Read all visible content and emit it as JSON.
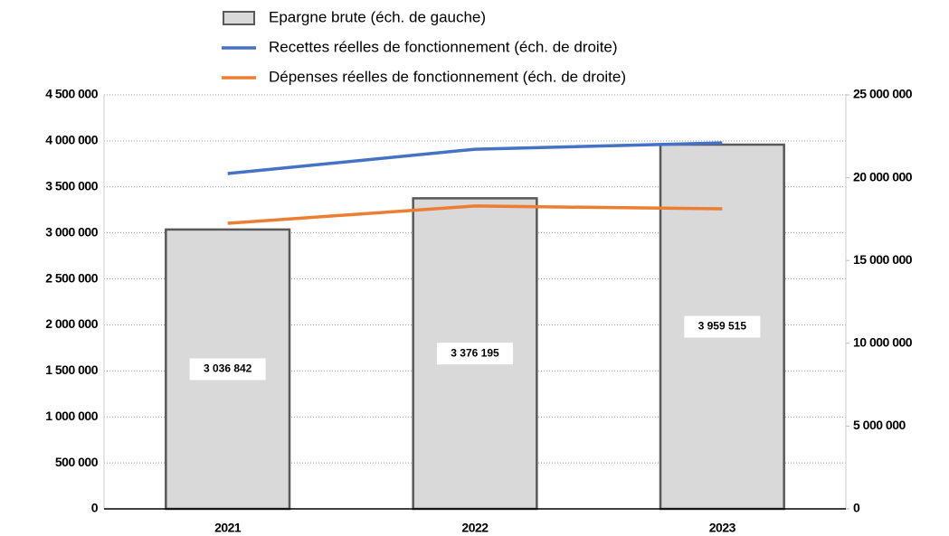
{
  "chart_data": {
    "type": "bar",
    "categories": [
      "2021",
      "2022",
      "2023"
    ],
    "series": [
      {
        "name": "Epargne brute (éch. de gauche)",
        "type": "bar",
        "color": "#d9d9d9",
        "values": [
          3036842,
          3376195,
          3959515
        ],
        "value_labels": [
          "3 036 842",
          "3 376 195",
          "3 959 515"
        ]
      },
      {
        "name": "Recettes réelles de fonctionnement (éch. de droite)",
        "type": "line",
        "axis": "y2",
        "color": "#4472c4",
        "values": [
          20250000,
          21720000,
          22100000
        ]
      },
      {
        "name": "Dépenses réelles de fonctionnement (éch. de droite)",
        "type": "line",
        "axis": "y2",
        "color": "#ed7d31",
        "values": [
          17250000,
          18290000,
          18120000
        ]
      }
    ],
    "ylim": [
      0,
      4500000
    ],
    "yticks": [
      0,
      {
        "value": 500000,
        "label": "500 000"
      },
      {
        "value": 1000000,
        "label": "1 000 000"
      },
      {
        "value": 1500000,
        "label": "1 500 000"
      },
      {
        "value": 2000000,
        "label": "2 000 000"
      },
      {
        "value": 2500000,
        "label": "2 500 000"
      },
      {
        "value": 3000000,
        "label": "3 000 000"
      },
      {
        "value": 3500000,
        "label": "3 500 000"
      },
      {
        "value": 4000000,
        "label": "4 000 000"
      },
      {
        "value": 4500000,
        "label": "4 500 000"
      }
    ],
    "y2lim": [
      0,
      25000000
    ],
    "y2ticks": [
      0,
      {
        "value": 5000000,
        "label": "5 000 000"
      },
      {
        "value": 10000000,
        "label": "10 000 000"
      },
      {
        "value": 15000000,
        "label": "15 000 000"
      },
      {
        "value": 20000000,
        "label": "20 000 000"
      },
      {
        "value": 25000000,
        "label": "25 000 000"
      }
    ],
    "grid": true,
    "legend": "top"
  }
}
